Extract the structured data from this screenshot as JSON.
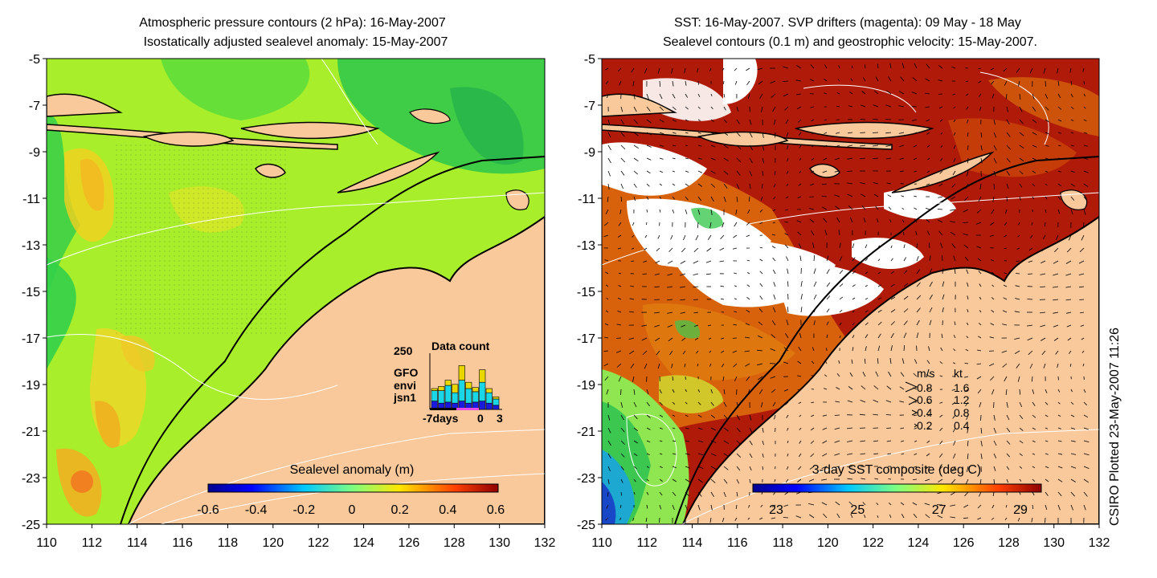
{
  "left_panel": {
    "title_line1": "Atmospheric pressure contours (2 hPa): 16-May-2007",
    "title_line2": "Isostatically adjusted sealevel anomaly: 15-May-2007",
    "colorbar_label": "Sealevel anomaly (m)",
    "colorbar_ticks": [
      "-0.6",
      "-0.4",
      "-0.2",
      "0",
      "0.2",
      "0.4",
      "0.6"
    ],
    "inset": {
      "max_label": "250",
      "title": "Data count",
      "legend": [
        {
          "name": "GFO",
          "color": "#e8d800"
        },
        {
          "name": "envi",
          "color": "#19d7e6"
        },
        {
          "name": "jsn1",
          "color": "#1a1adc"
        }
      ],
      "x_labels": [
        "-7days",
        "0",
        "3"
      ]
    }
  },
  "right_panel": {
    "title_line1": "SST: 16-May-2007. SVP drifters (magenta): 09 May - 18 May",
    "title_line2": "Sealevel contours (0.1 m) and geostrophic velocity: 15-May-2007.",
    "colorbar_label": "3-day SST composite (deg C)",
    "colorbar_ticks": [
      "23",
      "25",
      "27",
      "29"
    ],
    "velocity_legend": {
      "header_ms": "m/s",
      "header_kt": "kt",
      "rows": [
        {
          "ms": "0.8",
          "kt": "1.6"
        },
        {
          "ms": "0.6",
          "kt": "1.2"
        },
        {
          "ms": "0.4",
          "kt": "0.8"
        },
        {
          "ms": "0.2",
          "kt": "0.4"
        }
      ]
    }
  },
  "axes": {
    "x_ticks": [
      "110",
      "112",
      "114",
      "116",
      "118",
      "120",
      "122",
      "124",
      "126",
      "128",
      "130",
      "132"
    ],
    "y_ticks": [
      "-5",
      "-7",
      "-9",
      "-11",
      "-13",
      "-15",
      "-17",
      "-19",
      "-21",
      "-23",
      "-25"
    ]
  },
  "credit": "CSIRO Plotted 23-May-2007 11:26",
  "colors": {
    "land": "#f9c89b",
    "sla_bg": "#a8ee2a",
    "sst_warm": "#b01a08",
    "cloud": "#ffffff"
  }
}
